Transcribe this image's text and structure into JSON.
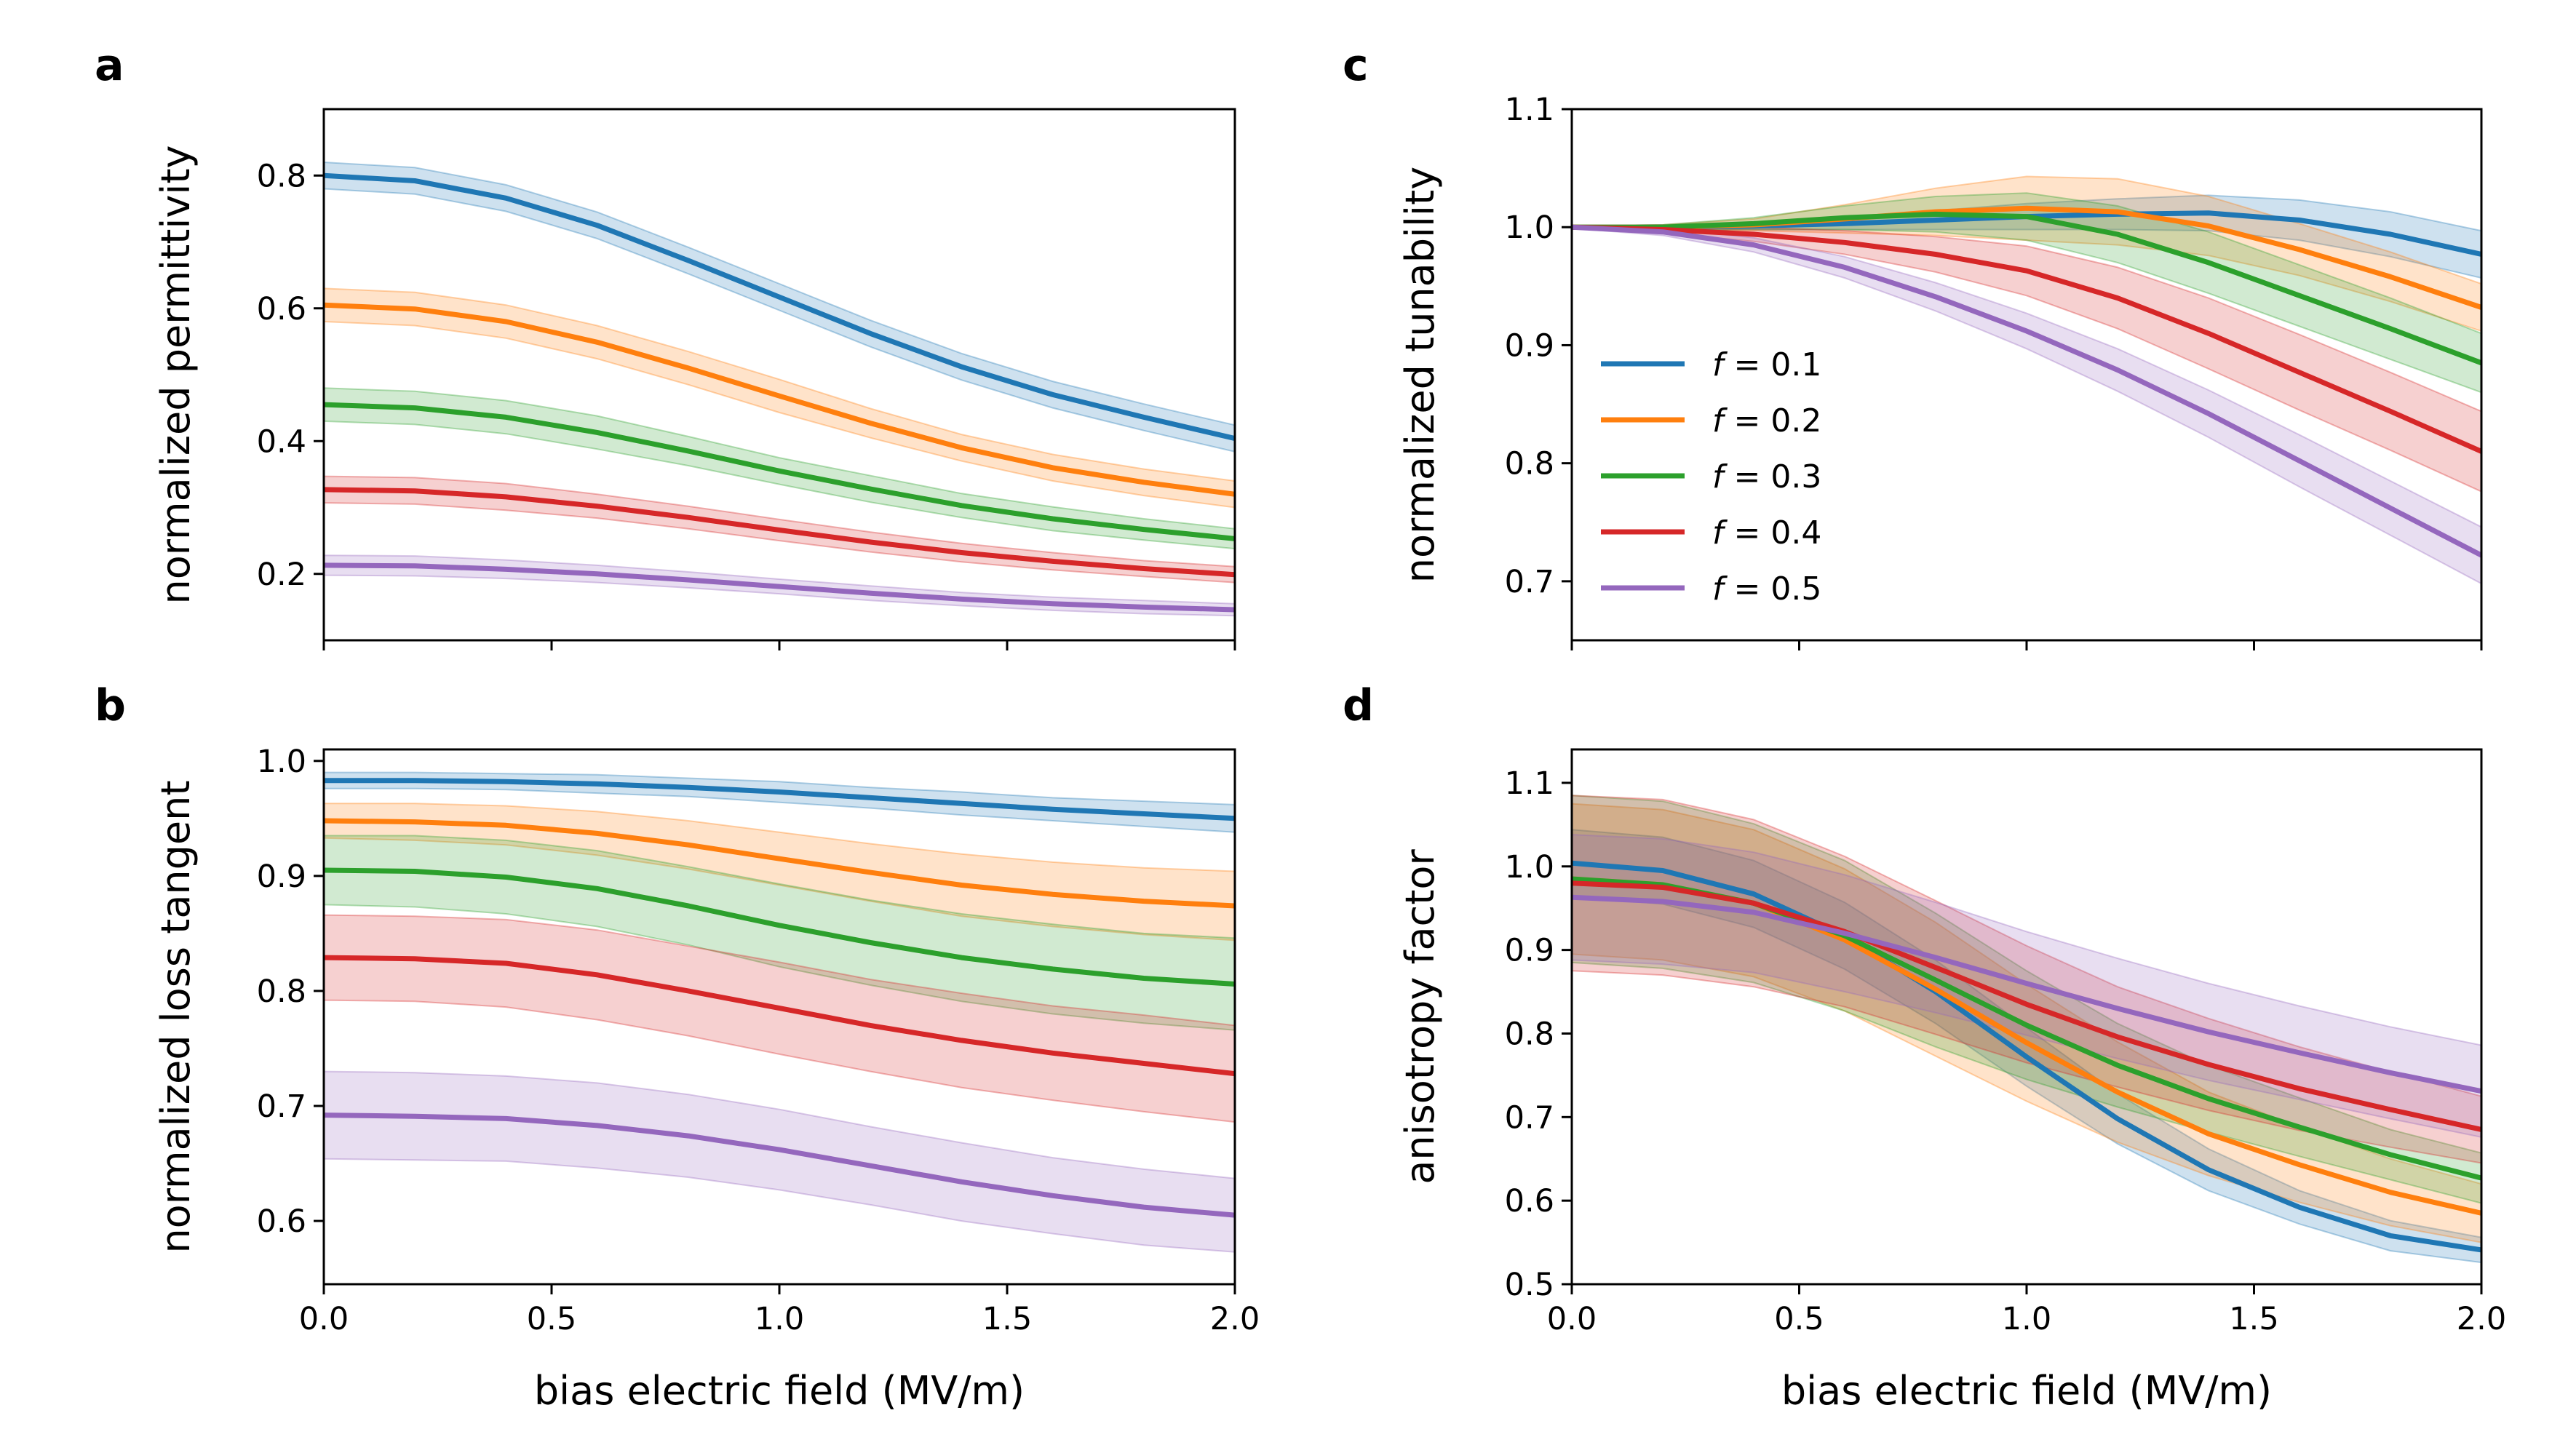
{
  "x_axis": {
    "label": "bias electric field (MV/m)",
    "range": [
      0,
      2
    ],
    "ticks": [
      0,
      0.5,
      1,
      1.5,
      2
    ],
    "tick_labels": [
      "0.0",
      "0.5",
      "1.0",
      "1.5",
      "2.0"
    ]
  },
  "series": [
    {
      "name": "f = 0.1",
      "color": "#1f77b4"
    },
    {
      "name": "f = 0.2",
      "color": "#ff7f0e"
    },
    {
      "name": "f = 0.3",
      "color": "#2ca02c"
    },
    {
      "name": "f = 0.4",
      "color": "#d62728"
    },
    {
      "name": "f = 0.5",
      "color": "#9467bd"
    }
  ],
  "legend": {
    "panel": "c",
    "placement": "center-left",
    "entries": [
      {
        "prefix": "f",
        "text": " = 0.1"
      },
      {
        "prefix": "f",
        "text": " = 0.2"
      },
      {
        "prefix": "f",
        "text": " = 0.3"
      },
      {
        "prefix": "f",
        "text": " = 0.4"
      },
      {
        "prefix": "f",
        "text": " = 0.5"
      }
    ]
  },
  "chart_data": [
    {
      "panel": "a",
      "type": "line",
      "ylabel": "normalized permittivity",
      "ylim": [
        0.1,
        0.9
      ],
      "yticks": [
        0.2,
        0.4,
        0.6,
        0.8
      ],
      "ytick_labels": [
        "0.2",
        "0.4",
        "0.6",
        "0.8"
      ],
      "show_x_tick_labels": false,
      "x": [
        0,
        0.2,
        0.4,
        0.6,
        0.8,
        1.0,
        1.2,
        1.4,
        1.6,
        1.8,
        2.0
      ],
      "series": [
        {
          "name": "f = 0.1",
          "values": [
            0.8,
            0.792,
            0.766,
            0.725,
            0.672,
            0.617,
            0.562,
            0.512,
            0.47,
            0.436,
            0.404
          ],
          "band": [
            0.02,
            0.02,
            0.02,
            0.02,
            0.02,
            0.02,
            0.02,
            0.02,
            0.02,
            0.02,
            0.02
          ]
        },
        {
          "name": "f = 0.2",
          "values": [
            0.605,
            0.599,
            0.58,
            0.549,
            0.51,
            0.468,
            0.427,
            0.39,
            0.36,
            0.338,
            0.32
          ],
          "band": [
            0.025,
            0.025,
            0.025,
            0.025,
            0.025,
            0.025,
            0.022,
            0.02,
            0.02,
            0.02,
            0.02
          ]
        },
        {
          "name": "f = 0.3",
          "values": [
            0.455,
            0.45,
            0.436,
            0.413,
            0.385,
            0.355,
            0.328,
            0.303,
            0.283,
            0.267,
            0.253
          ],
          "band": [
            0.025,
            0.025,
            0.025,
            0.025,
            0.022,
            0.02,
            0.02,
            0.018,
            0.018,
            0.016,
            0.015
          ]
        },
        {
          "name": "f = 0.4",
          "values": [
            0.327,
            0.325,
            0.316,
            0.302,
            0.285,
            0.266,
            0.248,
            0.232,
            0.219,
            0.208,
            0.199
          ],
          "band": [
            0.02,
            0.02,
            0.02,
            0.018,
            0.017,
            0.016,
            0.015,
            0.014,
            0.013,
            0.012,
            0.012
          ]
        },
        {
          "name": "f = 0.5",
          "values": [
            0.213,
            0.212,
            0.207,
            0.2,
            0.191,
            0.181,
            0.171,
            0.162,
            0.155,
            0.15,
            0.146
          ],
          "band": [
            0.015,
            0.015,
            0.014,
            0.013,
            0.012,
            0.011,
            0.011,
            0.01,
            0.01,
            0.01,
            0.009
          ]
        }
      ]
    },
    {
      "panel": "b",
      "type": "line",
      "ylabel": "normalized loss tangent",
      "ylim": [
        0.545,
        1.01
      ],
      "yticks": [
        0.6,
        0.7,
        0.8,
        0.9,
        1.0
      ],
      "ytick_labels": [
        "0.6",
        "0.7",
        "0.8",
        "0.9",
        "1.0"
      ],
      "show_x_tick_labels": true,
      "x": [
        0,
        0.2,
        0.4,
        0.6,
        0.8,
        1.0,
        1.2,
        1.4,
        1.6,
        1.8,
        2.0
      ],
      "series": [
        {
          "name": "f = 0.1",
          "values": [
            0.983,
            0.983,
            0.982,
            0.98,
            0.977,
            0.973,
            0.968,
            0.963,
            0.958,
            0.954,
            0.95
          ],
          "band": [
            0.007,
            0.007,
            0.007,
            0.008,
            0.008,
            0.009,
            0.009,
            0.01,
            0.01,
            0.011,
            0.012
          ]
        },
        {
          "name": "f = 0.2",
          "values": [
            0.948,
            0.947,
            0.944,
            0.937,
            0.927,
            0.915,
            0.903,
            0.892,
            0.884,
            0.878,
            0.874
          ],
          "band": [
            0.015,
            0.016,
            0.017,
            0.019,
            0.021,
            0.023,
            0.025,
            0.027,
            0.028,
            0.029,
            0.03
          ]
        },
        {
          "name": "f = 0.3",
          "values": [
            0.905,
            0.904,
            0.899,
            0.889,
            0.874,
            0.857,
            0.842,
            0.829,
            0.819,
            0.811,
            0.806
          ],
          "band": [
            0.03,
            0.031,
            0.032,
            0.033,
            0.034,
            0.036,
            0.037,
            0.038,
            0.039,
            0.039,
            0.04
          ]
        },
        {
          "name": "f = 0.4",
          "values": [
            0.829,
            0.828,
            0.824,
            0.814,
            0.8,
            0.785,
            0.77,
            0.757,
            0.746,
            0.737,
            0.728
          ],
          "band": [
            0.037,
            0.037,
            0.038,
            0.039,
            0.039,
            0.04,
            0.04,
            0.041,
            0.041,
            0.042,
            0.042
          ]
        },
        {
          "name": "f = 0.5",
          "values": [
            0.692,
            0.691,
            0.689,
            0.683,
            0.674,
            0.662,
            0.648,
            0.634,
            0.622,
            0.612,
            0.605
          ],
          "band": [
            0.038,
            0.038,
            0.037,
            0.037,
            0.036,
            0.035,
            0.034,
            0.034,
            0.033,
            0.033,
            0.032
          ]
        }
      ]
    },
    {
      "panel": "c",
      "type": "line",
      "ylabel": "normalized tunability",
      "ylim": [
        0.65,
        1.1
      ],
      "yticks": [
        0.7,
        0.8,
        0.9,
        1.0,
        1.1
      ],
      "ytick_labels": [
        "0.7",
        "0.8",
        "0.9",
        "1.0",
        "1.1"
      ],
      "show_x_tick_labels": false,
      "x": [
        0,
        0.2,
        0.4,
        0.6,
        0.8,
        1.0,
        1.2,
        1.4,
        1.6,
        1.8,
        2.0
      ],
      "series": [
        {
          "name": "f = 0.1",
          "values": [
            1.0,
            1.0,
            1.001,
            1.003,
            1.006,
            1.009,
            1.011,
            1.012,
            1.006,
            0.994,
            0.977
          ],
          "band": [
            0.001,
            0.002,
            0.003,
            0.005,
            0.008,
            0.011,
            0.013,
            0.015,
            0.017,
            0.019,
            0.02
          ]
        },
        {
          "name": "f = 0.2",
          "values": [
            1.0,
            1.0,
            1.002,
            1.007,
            1.013,
            1.016,
            1.013,
            1.001,
            0.981,
            0.958,
            0.932
          ],
          "band": [
            0.001,
            0.002,
            0.005,
            0.012,
            0.02,
            0.027,
            0.028,
            0.025,
            0.022,
            0.021,
            0.02
          ]
        },
        {
          "name": "f = 0.3",
          "values": [
            1.0,
            1.0,
            1.003,
            1.008,
            1.011,
            1.009,
            0.994,
            0.97,
            0.942,
            0.914,
            0.885
          ],
          "band": [
            0.001,
            0.002,
            0.005,
            0.01,
            0.015,
            0.02,
            0.024,
            0.026,
            0.026,
            0.026,
            0.025
          ]
        },
        {
          "name": "f = 0.4",
          "values": [
            1.0,
            0.998,
            0.994,
            0.987,
            0.977,
            0.963,
            0.94,
            0.91,
            0.877,
            0.844,
            0.81
          ],
          "band": [
            0.001,
            0.003,
            0.006,
            0.01,
            0.015,
            0.021,
            0.026,
            0.03,
            0.032,
            0.033,
            0.034
          ]
        },
        {
          "name": "f = 0.5",
          "values": [
            1.0,
            0.996,
            0.985,
            0.966,
            0.941,
            0.912,
            0.879,
            0.842,
            0.802,
            0.762,
            0.722
          ],
          "band": [
            0.001,
            0.003,
            0.006,
            0.009,
            0.012,
            0.015,
            0.018,
            0.02,
            0.022,
            0.023,
            0.024
          ]
        }
      ]
    },
    {
      "panel": "d",
      "type": "line",
      "ylabel": "anisotropy factor",
      "ylim": [
        0.5,
        1.14
      ],
      "yticks": [
        0.5,
        0.6,
        0.7,
        0.8,
        0.9,
        1.0,
        1.1
      ],
      "ytick_labels": [
        "0.5",
        "0.6",
        "0.7",
        "0.8",
        "0.9",
        "1.0",
        "1.1"
      ],
      "show_x_tick_labels": true,
      "x": [
        0,
        0.2,
        0.4,
        0.6,
        0.8,
        1.0,
        1.2,
        1.4,
        1.6,
        1.8,
        2.0
      ],
      "series": [
        {
          "name": "f = 0.1",
          "values": [
            1.004,
            0.995,
            0.967,
            0.917,
            0.85,
            0.772,
            0.698,
            0.637,
            0.592,
            0.558,
            0.541
          ],
          "band": [
            0.04,
            0.04,
            0.04,
            0.04,
            0.038,
            0.035,
            0.03,
            0.025,
            0.02,
            0.018,
            0.015
          ]
        },
        {
          "name": "f = 0.2",
          "values": [
            0.985,
            0.978,
            0.956,
            0.912,
            0.853,
            0.789,
            0.73,
            0.68,
            0.643,
            0.61,
            0.585
          ],
          "band": [
            0.09,
            0.09,
            0.088,
            0.085,
            0.08,
            0.07,
            0.06,
            0.05,
            0.045,
            0.04,
            0.035
          ]
        },
        {
          "name": "f = 0.3",
          "values": [
            0.985,
            0.978,
            0.956,
            0.917,
            0.864,
            0.81,
            0.762,
            0.722,
            0.688,
            0.655,
            0.627
          ],
          "band": [
            0.1,
            0.1,
            0.095,
            0.09,
            0.08,
            0.065,
            0.05,
            0.04,
            0.035,
            0.03,
            0.03
          ]
        },
        {
          "name": "f = 0.4",
          "values": [
            0.98,
            0.975,
            0.956,
            0.922,
            0.879,
            0.835,
            0.796,
            0.763,
            0.734,
            0.709,
            0.685
          ],
          "band": [
            0.105,
            0.105,
            0.1,
            0.09,
            0.08,
            0.07,
            0.06,
            0.055,
            0.05,
            0.045,
            0.04
          ]
        },
        {
          "name": "f = 0.5",
          "values": [
            0.963,
            0.958,
            0.945,
            0.92,
            0.891,
            0.86,
            0.83,
            0.802,
            0.777,
            0.753,
            0.731
          ],
          "band": [
            0.075,
            0.075,
            0.072,
            0.07,
            0.066,
            0.062,
            0.06,
            0.058,
            0.056,
            0.055,
            0.055
          ]
        }
      ]
    }
  ]
}
